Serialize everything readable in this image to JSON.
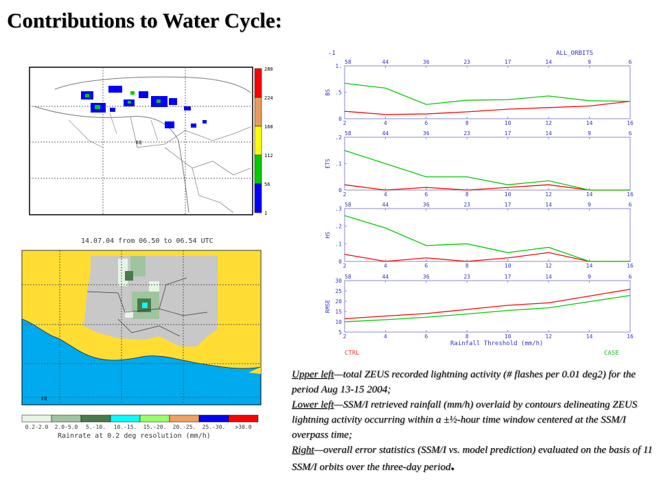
{
  "slide": {
    "title": "Contributions to Water Cycle:"
  },
  "lightning_map": {
    "legend_values": [
      "280",
      "224",
      "168",
      "112",
      "56",
      "1"
    ],
    "legend_colors": [
      "#ff0000",
      "#e89a5a",
      "#ffff00",
      "#00cc00",
      "#0000ff"
    ],
    "label_eq": "EQ"
  },
  "rain_map": {
    "title": "14.07.04 from 06.50 to 06.54 UTC",
    "label_eq": "EQ",
    "colorbar_labels": [
      "0.2-2.0",
      "2.0-5.0",
      "5.-10.",
      "10.-15.",
      "15.-20.",
      "20.-25.",
      "25.-30.",
      ">30.0"
    ],
    "colorbar_colors": [
      "#e6f5e6",
      "#a0c4a0",
      "#4a7a4a",
      "#00ffff",
      "#99ff66",
      "#f0a060",
      "#0000ff",
      "#ff0000"
    ],
    "colorbar_title": "Rainrate at 0.2 deg resolution (mm/h)"
  },
  "stats_panel": {
    "corner_label": "-1",
    "orbits_label": "ALL_ORBITS",
    "xlabel": "Rainfall Threshold (mm/h)",
    "ctrl_label": "CTRL",
    "case_label": "CASE",
    "ctrl_color": "#ff0000",
    "case_color": "#00cc00"
  },
  "chart_data": [
    {
      "type": "line",
      "name": "BS",
      "x": [
        2,
        4,
        6,
        8,
        10,
        12,
        14,
        16
      ],
      "top_labels": [
        "58",
        "44",
        "36",
        "23",
        "17",
        "14",
        "9",
        "6"
      ],
      "ylabel": "BS",
      "ylim": [
        0,
        1.0
      ],
      "yticks": [
        "0",
        ".5",
        "1."
      ],
      "series": [
        {
          "name": "CTRL",
          "values": [
            0.14,
            0.08,
            0.09,
            0.13,
            0.18,
            0.21,
            0.24,
            0.33
          ]
        },
        {
          "name": "CASE",
          "values": [
            0.67,
            0.58,
            0.27,
            0.35,
            0.36,
            0.43,
            0.34,
            0.33
          ]
        }
      ]
    },
    {
      "type": "line",
      "name": "ETS",
      "x": [
        2,
        4,
        6,
        8,
        10,
        12,
        14,
        16
      ],
      "top_labels": [
        "58",
        "44",
        "36",
        "23",
        "17",
        "14",
        "9",
        "6"
      ],
      "ylabel": "ETS",
      "ylim": [
        0,
        0.2
      ],
      "yticks": [
        "0",
        ".1",
        ".2"
      ],
      "series": [
        {
          "name": "CTRL",
          "values": [
            0.02,
            0.0,
            0.01,
            0.0,
            0.01,
            0.02,
            0.0,
            0.0
          ]
        },
        {
          "name": "CASE",
          "values": [
            0.15,
            0.1,
            0.05,
            0.05,
            0.02,
            0.035,
            0.0,
            0.0
          ]
        }
      ]
    },
    {
      "type": "line",
      "name": "HS",
      "x": [
        2,
        4,
        6,
        8,
        10,
        12,
        14,
        16
      ],
      "top_labels": [
        "58",
        "44",
        "36",
        "23",
        "17",
        "14",
        "9",
        "6"
      ],
      "ylabel": "HS",
      "ylim": [
        0,
        0.3
      ],
      "yticks": [
        "0",
        ".1",
        ".2",
        ".3"
      ],
      "series": [
        {
          "name": "CTRL",
          "values": [
            0.04,
            0.0,
            0.02,
            0.0,
            0.02,
            0.05,
            0.0,
            0.0
          ]
        },
        {
          "name": "CASE",
          "values": [
            0.26,
            0.19,
            0.09,
            0.1,
            0.05,
            0.08,
            0.0,
            0.0
          ]
        }
      ]
    },
    {
      "type": "line",
      "name": "RMSE",
      "x": [
        2,
        4,
        6,
        8,
        10,
        12,
        14,
        16
      ],
      "top_labels": [
        "58",
        "44",
        "36",
        "23",
        "17",
        "14",
        "9",
        "6"
      ],
      "ylabel": "RMSE",
      "ylim": [
        5,
        30
      ],
      "yticks": [
        "5",
        "10",
        "15",
        "20",
        "25",
        "30"
      ],
      "xticks": [
        "2",
        "4",
        "6",
        "8",
        "10",
        "12",
        "14",
        "16"
      ],
      "series": [
        {
          "name": "CTRL",
          "values": [
            11.5,
            12.8,
            14.0,
            16.0,
            18.0,
            19.2,
            22.5,
            25.8
          ]
        },
        {
          "name": "CASE",
          "values": [
            10.0,
            11.0,
            12.2,
            13.8,
            15.5,
            16.8,
            19.8,
            22.8
          ]
        }
      ]
    }
  ],
  "caption": {
    "p1_lead": "Upper left",
    "p1_text": "—total ZEUS recorded lightning activity (# flashes per 0.01 deg2) for the period Aug 13-15 2004;",
    "p2_lead": "Lower left",
    "p2_text": "—SSM/I retrieved rainfall (mm/h) overlaid by contours delineating ZEUS lightning activity occurring within a ±½-hour time window centered at the SSM/I overpass time;",
    "p3_lead": "Right",
    "p3_text": "—overall error statistics (SSM/I vs. model prediction) evaluated on the basis of 11 SSM/I orbits over the three-day period",
    "p3_end": "."
  }
}
